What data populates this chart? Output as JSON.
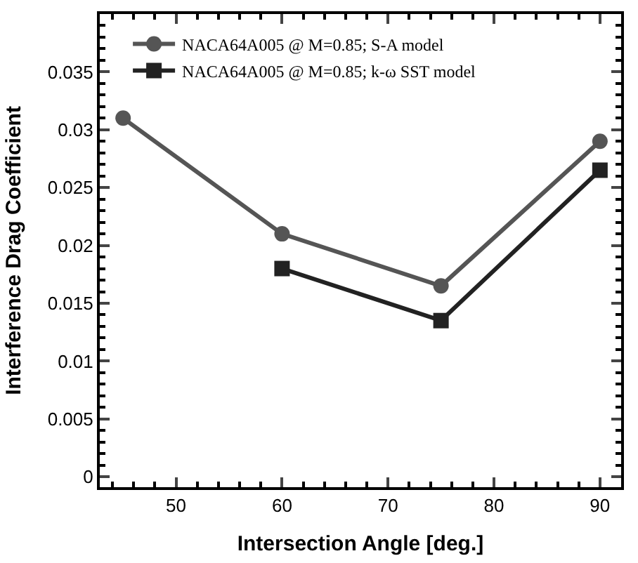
{
  "chart_data": {
    "type": "line",
    "xlabel": "Intersection Angle [deg.]",
    "ylabel": "Interference Drag Coefficient",
    "xlim": [
      42.8,
      92
    ],
    "xticks": [
      50,
      60,
      70,
      80,
      90
    ],
    "ylim": [
      -0.0009,
      0.04
    ],
    "yticks": [
      0,
      0.005,
      0.01,
      0.015,
      0.02,
      0.025,
      0.03,
      0.035
    ],
    "legend": "top left",
    "series": [
      {
        "name": "NACA64A005 @ M=0.85; S-A model",
        "color": "#555555",
        "marker": "circle",
        "x": [
          45,
          60,
          75,
          90
        ],
        "values": [
          0.031,
          0.021,
          0.0165,
          0.029
        ]
      },
      {
        "name": "NACA64A005 @ M=0.85; k-ω SST model",
        "color": "#222222",
        "marker": "square",
        "x": [
          60,
          75,
          90
        ],
        "values": [
          0.018,
          0.0135,
          0.0265
        ]
      }
    ]
  }
}
